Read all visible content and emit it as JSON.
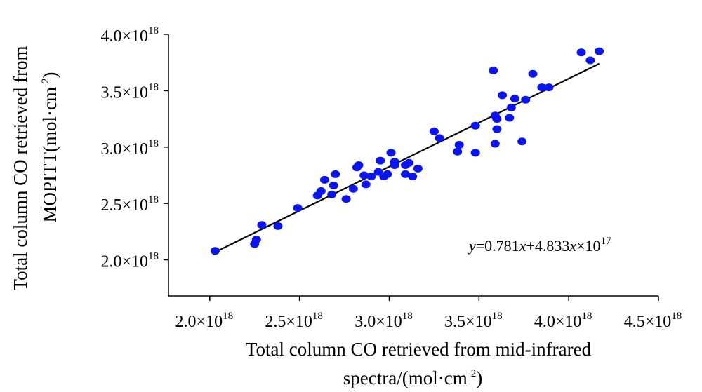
{
  "chart_data": {
    "type": "scatter",
    "title": "",
    "xlabel_lines": [
      "Total column CO retrieved from mid-infrared",
      "spectra/(mol·cm",
      "-2",
      ")"
    ],
    "ylabel_lines": [
      "Total column CO retrieved from",
      "MOPITT(mol·cm",
      "-2",
      ")"
    ],
    "tick_mantissa_x": [
      "2.0×10",
      "2.5×10",
      "3.0×10",
      "3.5×10",
      "4.0×10",
      "4.5×10"
    ],
    "tick_mantissa_y": [
      "2.0×10",
      "2.5×10",
      "3.0×10",
      "3.5×10",
      "4.0×10"
    ],
    "tick_exponent": "18",
    "x_ticks": [
      2e+18,
      2.5e+18,
      3e+18,
      3.5e+18,
      4e+18,
      4.5e+18
    ],
    "y_ticks": [
      2e+18,
      2.5e+18,
      3e+18,
      3.5e+18,
      4e+18
    ],
    "xlim": [
      1.77e+18,
      4.5e+18
    ],
    "ylim": [
      1.68e+18,
      4e+18
    ],
    "grid": false,
    "marker_color": "#0a14f0",
    "line_color": "#000000",
    "equation": {
      "y": "y",
      "eq1": "=0.781",
      "x1": "x",
      "eq2": "+4.833",
      "x2": "x",
      "eq3": "×10",
      "exp": "17"
    },
    "fit_line": {
      "slope": 0.781,
      "intercept": 4.833e+17,
      "x_range": [
        2.03e+18,
        4.17e+18
      ]
    },
    "points": [
      [
        2.03e+18,
        2.08e+18
      ],
      [
        2.25e+18,
        2.14e+18
      ],
      [
        2.26e+18,
        2.18e+18
      ],
      [
        2.29e+18,
        2.31e+18
      ],
      [
        2.38e+18,
        2.3e+18
      ],
      [
        2.49e+18,
        2.46e+18
      ],
      [
        2.6e+18,
        2.57e+18
      ],
      [
        2.62e+18,
        2.61e+18
      ],
      [
        2.64e+18,
        2.71e+18
      ],
      [
        2.68e+18,
        2.58e+18
      ],
      [
        2.69e+18,
        2.66e+18
      ],
      [
        2.7e+18,
        2.76e+18
      ],
      [
        2.76e+18,
        2.54e+18
      ],
      [
        2.8e+18,
        2.63e+18
      ],
      [
        2.82e+18,
        2.82e+18
      ],
      [
        2.83e+18,
        2.84e+18
      ],
      [
        2.86e+18,
        2.75e+18
      ],
      [
        2.87e+18,
        2.67e+18
      ],
      [
        2.9e+18,
        2.74e+18
      ],
      [
        2.94e+18,
        2.78e+18
      ],
      [
        2.95e+18,
        2.88e+18
      ],
      [
        2.97e+18,
        2.74e+18
      ],
      [
        2.99e+18,
        2.76e+18
      ],
      [
        3.01e+18,
        2.95e+18
      ],
      [
        3.03e+18,
        2.87e+18
      ],
      [
        3.03e+18,
        2.84e+18
      ],
      [
        3.09e+18,
        2.76e+18
      ],
      [
        3.09e+18,
        2.84e+18
      ],
      [
        3.11e+18,
        2.86e+18
      ],
      [
        3.13e+18,
        2.74e+18
      ],
      [
        3.16e+18,
        2.81e+18
      ],
      [
        3.25e+18,
        3.14e+18
      ],
      [
        3.28e+18,
        3.08e+18
      ],
      [
        3.38e+18,
        2.96e+18
      ],
      [
        3.39e+18,
        3.02e+18
      ],
      [
        3.48e+18,
        2.95e+18
      ],
      [
        3.48e+18,
        3.19e+18
      ],
      [
        3.58e+18,
        3.68e+18
      ],
      [
        3.59e+18,
        3.28e+18
      ],
      [
        3.59e+18,
        3.03e+18
      ],
      [
        3.6e+18,
        3.25e+18
      ],
      [
        3.6e+18,
        3.16e+18
      ],
      [
        3.63e+18,
        3.46e+18
      ],
      [
        3.67e+18,
        3.26e+18
      ],
      [
        3.68e+18,
        3.35e+18
      ],
      [
        3.7e+18,
        3.43e+18
      ],
      [
        3.74e+18,
        3.05e+18
      ],
      [
        3.76e+18,
        3.42e+18
      ],
      [
        3.8e+18,
        3.65e+18
      ],
      [
        3.85e+18,
        3.53e+18
      ],
      [
        3.89e+18,
        3.53e+18
      ],
      [
        4.07e+18,
        3.84e+18
      ],
      [
        4.12e+18,
        3.77e+18
      ],
      [
        4.17e+18,
        3.85e+18
      ]
    ]
  }
}
